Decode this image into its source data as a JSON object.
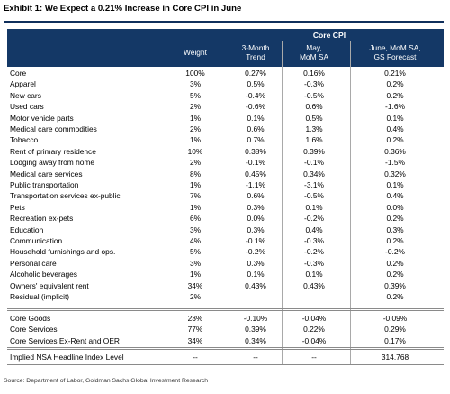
{
  "title": "Exhibit 1: We Expect a 0.21% Increase in Core CPI in June",
  "header": {
    "group": "Core CPI",
    "weight": "Weight",
    "trend_line1": "3-Month",
    "trend_line2": "Trend",
    "may_line1": "May,",
    "may_line2": "MoM SA",
    "june_line1": "June, MoM SA,",
    "june_line2": "GS Forecast"
  },
  "rows": [
    {
      "name": "Core",
      "weight": "100%",
      "trend": "0.27%",
      "may": "0.16%",
      "june": "0.21%"
    },
    {
      "name": "Apparel",
      "weight": "3%",
      "trend": "0.5%",
      "may": "-0.3%",
      "june": "0.2%"
    },
    {
      "name": "New cars",
      "weight": "5%",
      "trend": "-0.4%",
      "may": "-0.5%",
      "june": "0.2%"
    },
    {
      "name": "Used cars",
      "weight": "2%",
      "trend": "-0.6%",
      "may": "0.6%",
      "june": "-1.6%"
    },
    {
      "name": "Motor vehicle parts",
      "weight": "1%",
      "trend": "0.1%",
      "may": "0.5%",
      "june": "0.1%"
    },
    {
      "name": "Medical care commodities",
      "weight": "2%",
      "trend": "0.6%",
      "may": "1.3%",
      "june": "0.4%"
    },
    {
      "name": "Tobacco",
      "weight": "1%",
      "trend": "0.7%",
      "may": "1.6%",
      "june": "0.2%"
    },
    {
      "name": "Rent of primary residence",
      "weight": "10%",
      "trend": "0.38%",
      "may": "0.39%",
      "june": "0.36%"
    },
    {
      "name": "Lodging away from home",
      "weight": "2%",
      "trend": "-0.1%",
      "may": "-0.1%",
      "june": "-1.5%"
    },
    {
      "name": "Medical care services",
      "weight": "8%",
      "trend": "0.45%",
      "may": "0.34%",
      "june": "0.32%"
    },
    {
      "name": "Public transportation",
      "weight": "1%",
      "trend": "-1.1%",
      "may": "-3.1%",
      "june": "0.1%"
    },
    {
      "name": "Transportation services ex-public",
      "weight": "7%",
      "trend": "0.6%",
      "may": "-0.5%",
      "june": "0.4%"
    },
    {
      "name": "Pets",
      "weight": "1%",
      "trend": "0.3%",
      "may": "0.1%",
      "june": "0.0%"
    },
    {
      "name": "Recreation ex-pets",
      "weight": "6%",
      "trend": "0.0%",
      "may": "-0.2%",
      "june": "0.2%"
    },
    {
      "name": "Education",
      "weight": "3%",
      "trend": "0.3%",
      "may": "0.4%",
      "june": "0.3%"
    },
    {
      "name": "Communication",
      "weight": "4%",
      "trend": "-0.1%",
      "may": "-0.3%",
      "june": "0.2%"
    },
    {
      "name": "Household furnishings and ops.",
      "weight": "5%",
      "trend": "-0.2%",
      "may": "-0.2%",
      "june": "-0.2%"
    },
    {
      "name": "Personal care",
      "weight": "3%",
      "trend": "0.3%",
      "may": "-0.3%",
      "june": "0.2%"
    },
    {
      "name": "Alcoholic beverages",
      "weight": "1%",
      "trend": "0.1%",
      "may": "0.1%",
      "june": "0.2%"
    },
    {
      "name": "Owners' equivalent rent",
      "weight": "34%",
      "trend": "0.43%",
      "may": "0.43%",
      "june": "0.39%"
    },
    {
      "name": "Residual (implicit)",
      "weight": "2%",
      "trend": "",
      "may": "",
      "june": "0.2%"
    }
  ],
  "summary_rows": [
    {
      "name": "Core Goods",
      "weight": "23%",
      "trend": "-0.10%",
      "may": "-0.04%",
      "june": "-0.09%"
    },
    {
      "name": "Core Services",
      "weight": "77%",
      "trend": "0.39%",
      "may": "0.22%",
      "june": "0.29%"
    },
    {
      "name": "Core Services Ex-Rent and OER",
      "weight": "34%",
      "trend": "0.34%",
      "may": "-0.04%",
      "june": "0.17%"
    }
  ],
  "headline_row": {
    "name": "Implied NSA Headline Index Level",
    "weight": "--",
    "trend": "--",
    "may": "--",
    "june": "314.768"
  },
  "source": "Source: Department of Labor, Goldman Sachs Global Investment Research"
}
